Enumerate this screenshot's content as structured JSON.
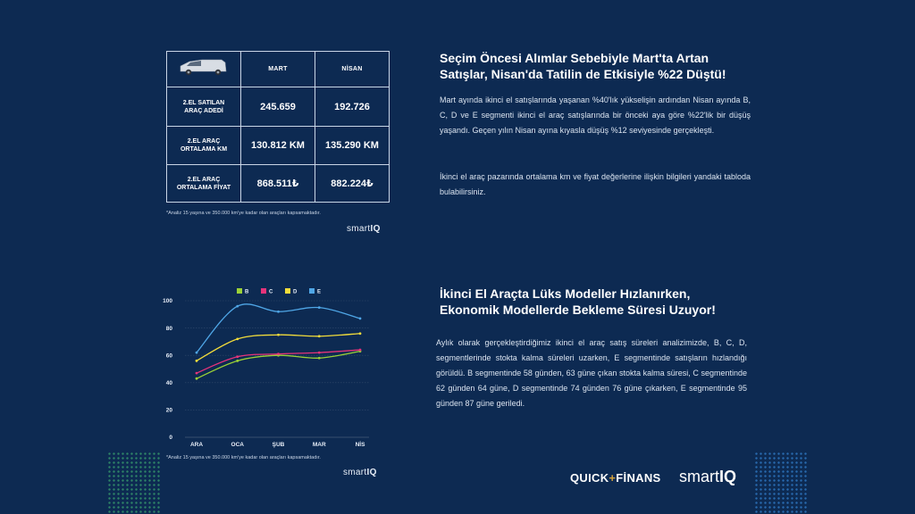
{
  "table": {
    "header_months": [
      "MART",
      "NİSAN"
    ],
    "rows": [
      {
        "label_l1": "2.EL SATILAN",
        "label_l2": "ARAÇ ADEDİ",
        "mart": "245.659",
        "nisan": "192.726"
      },
      {
        "label_l1": "2.EL  ARAÇ",
        "label_l2": "ORTALAMA KM",
        "mart": "130.812 KM",
        "nisan": "135.290 KM"
      },
      {
        "label_l1": "2.EL ARAÇ",
        "label_l2": "ORTALAMA FİYAT",
        "mart": "868.511₺",
        "nisan": "882.224₺"
      }
    ],
    "footnote": "*Analiz 15 yaşına ve 350.000 km'ye kadar olan araçları kapsamaktadır."
  },
  "brand_small": {
    "pre": "smart",
    "post": "IQ"
  },
  "section1": {
    "heading_l1": "Seçim Öncesi Alımlar Sebebiyle Mart'ta Artan",
    "heading_l2": "Satışlar, Nisan'da Tatilin de Etkisiyle %22 Düştü!",
    "p1": "Mart ayında ikinci el satışlarında yaşanan %40'lık yükselişin ardından Nisan ayında B, C, D ve E segmenti ikinci el araç satışlarında bir önceki aya göre %22'lik bir düşüş yaşandı. Geçen yılın Nisan ayına kıyasla düşüş %12 seviyesinde gerçekleşti.",
    "p2": "İkinci el araç pazarında ortalama km ve fiyat değerlerine ilişkin bilgileri yandaki tabloda bulabilirsiniz."
  },
  "section2": {
    "heading_l1": "İkinci El Araçta Lüks Modeller Hızlanırken,",
    "heading_l2": "Ekonomik Modellerde Bekleme Süresi Uzuyor!",
    "p1": "Aylık olarak gerçekleştirdiğimiz ikinci el araç satış süreleri analizimizde, B, C, D, segmentlerinde stokta kalma süreleri uzarken, E segmentinde satışların hızlandığı görüldü. B segmentinde 58 günden, 63 güne çıkan stokta kalma süresi, C segmentinde 62 günden 64 güne, D segmentinde 74 günden 76 güne çıkarken, E segmentinde 95 günden 87 güne geriledi."
  },
  "chart_footnote": "*Analiz 15 yaşına ve 350.000 km'ye kadar olan araçları kapsamaktadır.",
  "chart_data": {
    "type": "line",
    "categories": [
      "ARA",
      "OCA",
      "ŞUB",
      "MAR",
      "NİS"
    ],
    "series": [
      {
        "name": "B",
        "color": "#9bd137",
        "values": [
          43,
          56,
          60,
          58,
          63
        ]
      },
      {
        "name": "C",
        "color": "#e6337a",
        "values": [
          47,
          59,
          61,
          62,
          64
        ]
      },
      {
        "name": "D",
        "color": "#f2dc3b",
        "values": [
          56,
          72,
          75,
          74,
          76
        ]
      },
      {
        "name": "E",
        "color": "#4fa6e6",
        "values": [
          62,
          96,
          92,
          95,
          87
        ]
      }
    ],
    "yticks": [
      0,
      20,
      40,
      60,
      80,
      100
    ],
    "ylim": [
      0,
      100
    ],
    "legend": "top"
  },
  "footer": {
    "quick_a": "QUICK",
    "quick_sep": "+",
    "quick_b": "FİNANS",
    "smart_pre": "smart",
    "smart_post": "IQ"
  }
}
